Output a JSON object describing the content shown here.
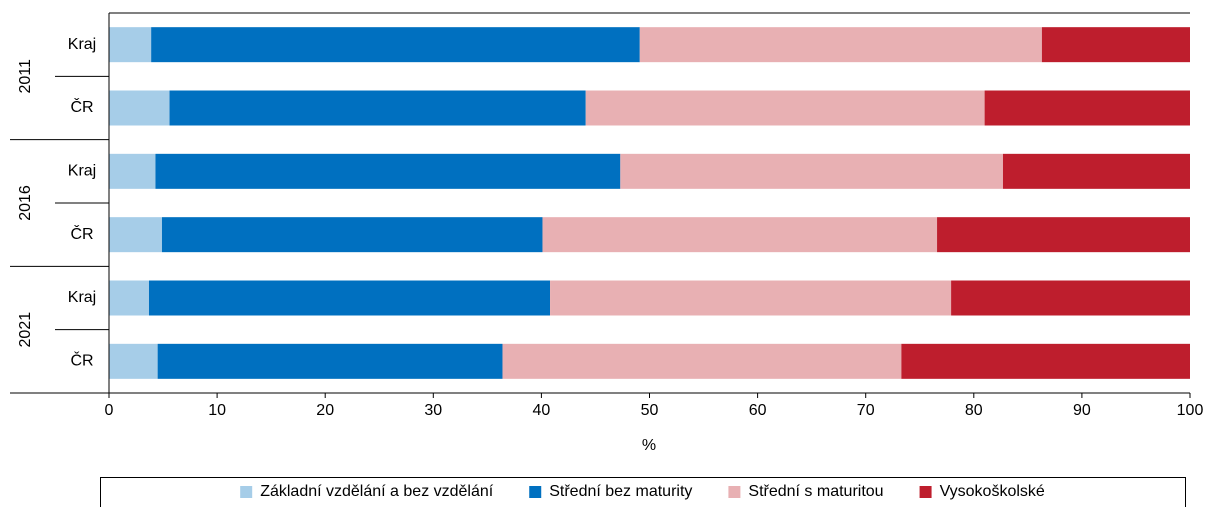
{
  "chart_data": {
    "type": "stacked_barh",
    "groups": [
      "2011",
      "2016",
      "2021"
    ],
    "categories": [
      "Kraj",
      "ČR",
      "Kraj",
      "ČR",
      "Kraj",
      "ČR"
    ],
    "series": [
      {
        "name": "Základní vzdělání a bez vzdělání",
        "color": "#a6cde8",
        "values": [
          3.9,
          5.6,
          4.3,
          4.9,
          3.7,
          4.5
        ]
      },
      {
        "name": "Střední bez maturity",
        "color": "#0070c0",
        "values": [
          45.2,
          38.5,
          43.0,
          35.2,
          37.1,
          31.9
        ]
      },
      {
        "name": "Střední s maturitou",
        "color": "#e8b0b3",
        "values": [
          37.2,
          36.9,
          35.4,
          36.5,
          37.1,
          36.9
        ]
      },
      {
        "name": "Vysokoškolské",
        "color": "#be1e2d",
        "values": [
          13.7,
          19.0,
          17.3,
          23.4,
          22.1,
          26.7
        ]
      }
    ],
    "xlabel": "%",
    "xlim": [
      0,
      100
    ],
    "xticks": [
      0,
      10,
      20,
      30,
      40,
      50,
      60,
      70,
      80,
      90,
      100
    ],
    "legend": "bottom"
  }
}
